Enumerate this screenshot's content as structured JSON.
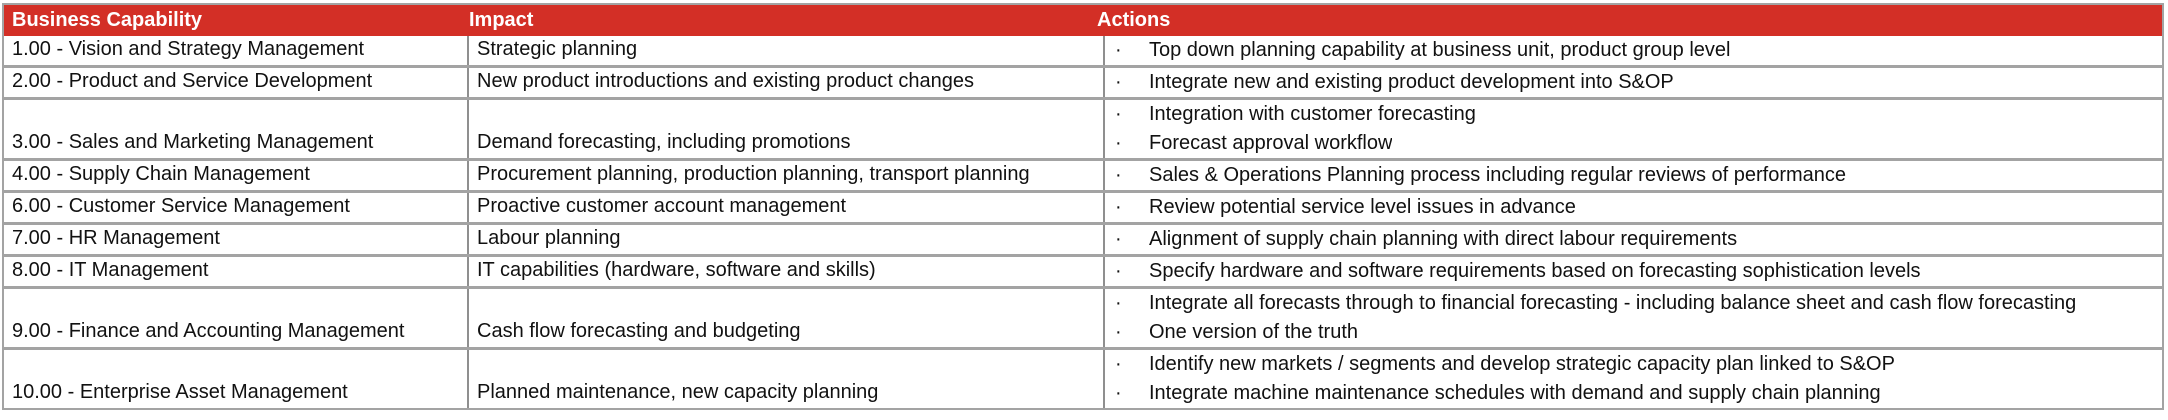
{
  "table": {
    "bullet": "·",
    "colors": {
      "header_bg": "#d32f26",
      "header_text": "#ffffff",
      "body_text": "#111111",
      "border_horizontal": "#a3a3a3",
      "border_vertical": "#8f8f8f",
      "cell_bg": "#ffffff"
    },
    "columns": [
      {
        "label": "Business Capability"
      },
      {
        "label": "Impact"
      },
      {
        "label": "Actions"
      }
    ],
    "rows": [
      {
        "capability": "1.00 - Vision and Strategy Management",
        "impact": "Strategic planning",
        "actions": [
          "Top down planning capability at business unit, product group level"
        ]
      },
      {
        "capability": "2.00 - Product and Service Development",
        "impact": "New product introductions and existing product changes",
        "actions": [
          "Integrate new and existing product development into S&OP"
        ]
      },
      {
        "capability": "3.00 - Sales and Marketing Management",
        "impact": "Demand forecasting, including promotions",
        "actions": [
          "Integration with customer forecasting",
          "Forecast approval workflow"
        ]
      },
      {
        "capability": "4.00 - Supply Chain Management",
        "impact": "Procurement planning, production planning, transport planning",
        "actions": [
          "Sales & Operations Planning process including regular reviews of performance"
        ]
      },
      {
        "capability": "6.00 - Customer Service Management",
        "impact": "Proactive customer account management",
        "actions": [
          "Review potential service level issues in advance"
        ]
      },
      {
        "capability": "7.00 - HR Management",
        "impact": "Labour planning",
        "actions": [
          "Alignment of supply chain planning with direct labour requirements"
        ]
      },
      {
        "capability": "8.00 - IT Management",
        "impact": "IT capabilities (hardware, software and skills)",
        "actions": [
          "Specify hardware and software requirements based on forecasting sophistication levels"
        ]
      },
      {
        "capability": "9.00 - Finance and Accounting Management",
        "impact": "Cash flow forecasting and budgeting",
        "actions": [
          "Integrate all forecasts through to financial forecasting - including balance sheet and cash flow forecasting",
          "One version of the truth"
        ]
      },
      {
        "capability": "10.00 - Enterprise Asset Management",
        "impact": "Planned maintenance, new capacity planning",
        "actions": [
          "Identify new markets / segments and develop strategic capacity plan linked to S&OP",
          "Integrate machine maintenance schedules with demand and supply chain planning"
        ]
      }
    ]
  }
}
